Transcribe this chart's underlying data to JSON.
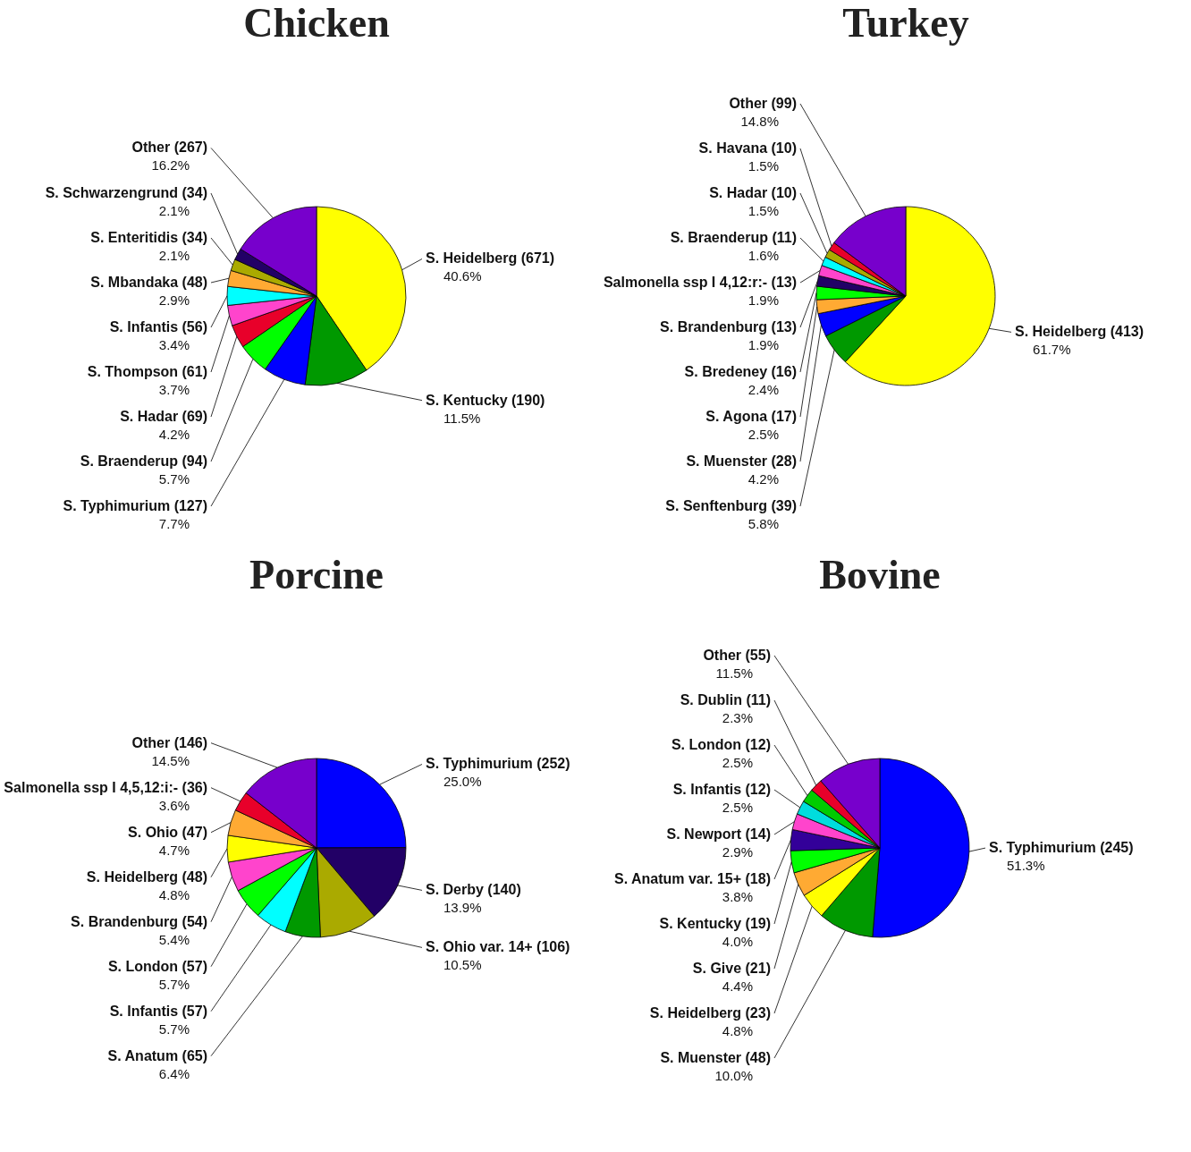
{
  "chart_data": [
    {
      "type": "pie",
      "title": "Chicken",
      "categories": [
        "S. Heidelberg (671)",
        "S. Kentucky (190)",
        "S. Typhimurium (127)",
        "S. Braenderup (94)",
        "S. Hadar (69)",
        "S. Thompson (61)",
        "S. Infantis (56)",
        "S. Mbandaka (48)",
        "S. Enteritidis (34)",
        "S. Schwarzengrund (34)",
        "Other (267)"
      ],
      "values": [
        40.6,
        11.5,
        7.7,
        5.7,
        4.2,
        3.7,
        3.4,
        2.9,
        2.1,
        2.1,
        16.2
      ],
      "value_labels": [
        "40.6%",
        "11.5%",
        "7.7%",
        "5.7%",
        "4.2%",
        "3.7%",
        "3.4%",
        "2.9%",
        "2.1%",
        "2.1%",
        "16.2%"
      ],
      "colors": [
        "#ffff00",
        "#009900",
        "#0000ff",
        "#00ff00",
        "#e8002a",
        "#ff44cc",
        "#00ffff",
        "#ffaa33",
        "#aaaa00",
        "#220066",
        "#7700cc"
      ]
    },
    {
      "type": "pie",
      "title": "Turkey",
      "categories": [
        "S. Heidelberg (413)",
        "S. Senftenburg (39)",
        "S. Muenster (28)",
        "S. Agona (17)",
        "S. Bredeney (16)",
        "S. Brandenburg (13)",
        "Salmonella ssp I 4,12:r:- (13)",
        "S. Braenderup (11)",
        "S. Hadar (10)",
        "S. Havana (10)",
        "Other (99)"
      ],
      "values": [
        61.7,
        5.8,
        4.2,
        2.5,
        2.4,
        1.9,
        1.9,
        1.6,
        1.5,
        1.5,
        14.8
      ],
      "value_labels": [
        "61.7%",
        "5.8%",
        "4.2%",
        "2.5%",
        "2.4%",
        "1.9%",
        "1.9%",
        "1.6%",
        "1.5%",
        "1.5%",
        "14.8%"
      ],
      "colors": [
        "#ffff00",
        "#009900",
        "#0000ff",
        "#ffaa33",
        "#00ff00",
        "#220066",
        "#ff44cc",
        "#00ffff",
        "#aaaa00",
        "#e8002a",
        "#7700cc"
      ]
    },
    {
      "type": "pie",
      "title": "Porcine",
      "categories": [
        "S. Typhimurium (252)",
        "S. Derby (140)",
        "S. Ohio var. 14+ (106)",
        "S. Anatum (65)",
        "S. Infantis (57)",
        "S. London (57)",
        "S. Brandenburg (54)",
        "S. Heidelberg (48)",
        "S. Ohio (47)",
        "Salmonella ssp I 4,5,12:i:- (36)",
        "Other (146)"
      ],
      "values": [
        25.0,
        13.9,
        10.5,
        6.4,
        5.7,
        5.7,
        5.4,
        4.8,
        4.7,
        3.6,
        14.5
      ],
      "value_labels": [
        "25.0%",
        "13.9%",
        "10.5%",
        "6.4%",
        "5.7%",
        "5.7%",
        "5.4%",
        "4.8%",
        "4.7%",
        "3.6%",
        "14.5%"
      ],
      "colors": [
        "#0000ff",
        "#220066",
        "#aaaa00",
        "#009900",
        "#00ffff",
        "#00ff00",
        "#ff44cc",
        "#ffff00",
        "#ffaa33",
        "#e8002a",
        "#7700cc"
      ]
    },
    {
      "type": "pie",
      "title": "Bovine",
      "categories": [
        "S. Typhimurium (245)",
        "S. Muenster (48)",
        "S. Heidelberg (23)",
        "S. Give (21)",
        "S. Kentucky (19)",
        "S. Anatum var. 15+ (18)",
        "S. Newport (14)",
        "S. Infantis (12)",
        "S. London (12)",
        "S. Dublin (11)",
        "Other (55)"
      ],
      "values": [
        51.3,
        10.0,
        4.8,
        4.4,
        4.0,
        3.8,
        2.9,
        2.5,
        2.5,
        2.3,
        11.5
      ],
      "value_labels": [
        "51.3%",
        "10.0%",
        "4.8%",
        "4.4%",
        "4.0%",
        "3.8%",
        "2.9%",
        "2.5%",
        "2.5%",
        "2.3%",
        "11.5%"
      ],
      "colors": [
        "#0000ff",
        "#009900",
        "#ffff00",
        "#ffaa33",
        "#00ff00",
        "#330099",
        "#ff44cc",
        "#00dddd",
        "#00cc00",
        "#e8002a",
        "#7700cc"
      ]
    }
  ]
}
